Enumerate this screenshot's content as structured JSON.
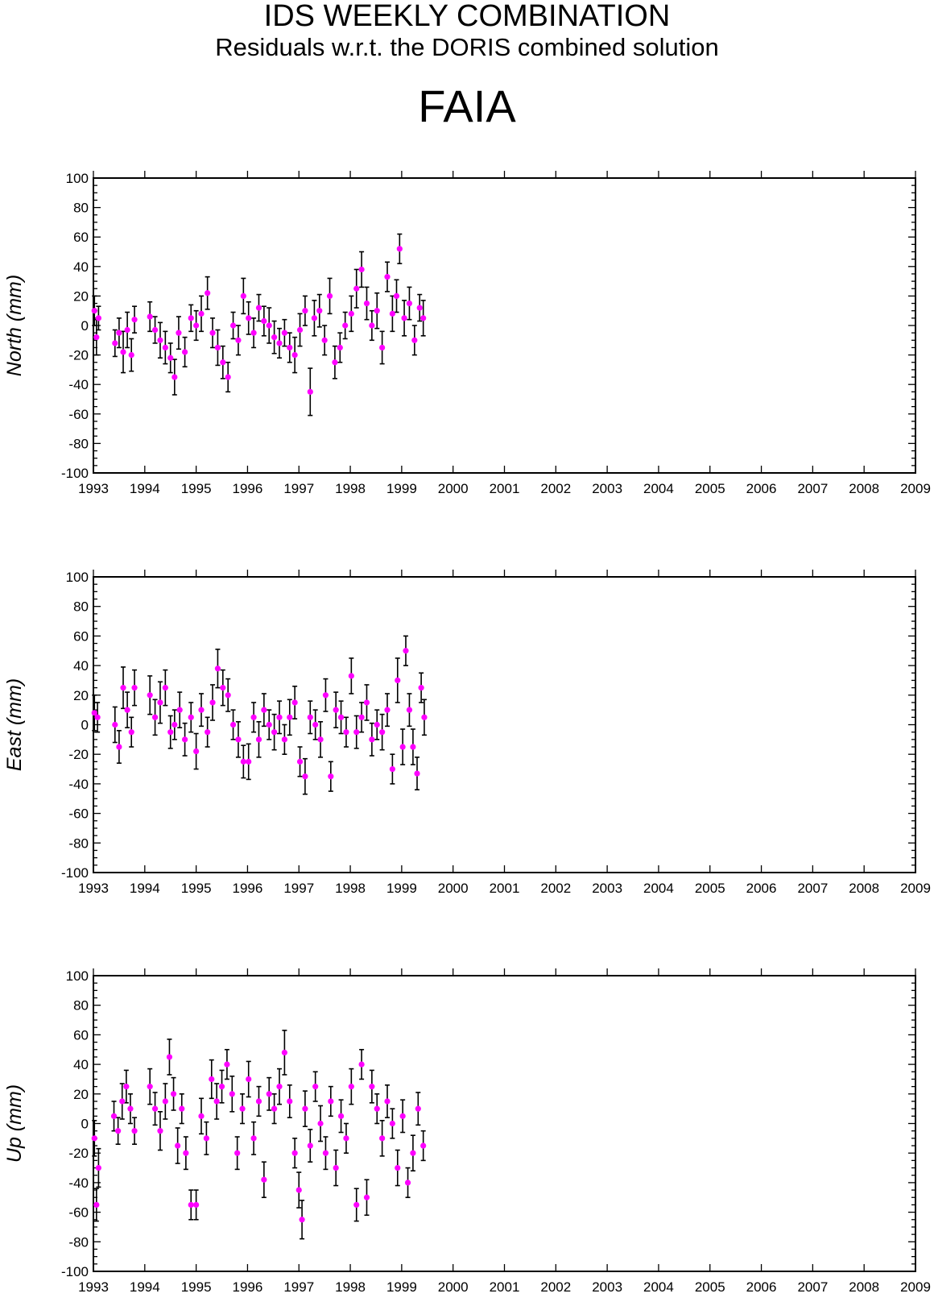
{
  "header": {
    "title": "IDS WEEKLY COMBINATION",
    "subtitle": "Residuals w.r.t. the DORIS combined solution",
    "station": "FAIA"
  },
  "colors": {
    "marker": "#ff00ff",
    "errorbar": "#000000",
    "axis": "#000000"
  },
  "chart_data": [
    {
      "type": "scatter",
      "ylabel": "North (mm)",
      "xlim": [
        1993,
        2009
      ],
      "ylim": [
        -100,
        100
      ],
      "xticks": [
        "1993",
        "1994",
        "1995",
        "1996",
        "1997",
        "1998",
        "1999",
        "2000",
        "2001",
        "2002",
        "2003",
        "2004",
        "2005",
        "2006",
        "2007",
        "2008",
        "2009"
      ],
      "yticks": [
        "100",
        "80",
        "60",
        "40",
        "20",
        "0",
        "-20",
        "-40",
        "-60",
        "-80",
        "-100"
      ],
      "x": [
        1993.02,
        1993.06,
        1993.1,
        1993.42,
        1993.5,
        1993.58,
        1993.66,
        1993.74,
        1993.8,
        1994.1,
        1994.2,
        1994.3,
        1994.4,
        1994.5,
        1994.58,
        1994.66,
        1994.78,
        1994.9,
        1995.0,
        1995.1,
        1995.22,
        1995.32,
        1995.42,
        1995.52,
        1995.62,
        1995.72,
        1995.82,
        1995.92,
        1996.02,
        1996.12,
        1996.22,
        1996.32,
        1996.42,
        1996.52,
        1996.62,
        1996.72,
        1996.82,
        1996.92,
        1997.02,
        1997.12,
        1997.22,
        1997.3,
        1997.4,
        1997.5,
        1997.6,
        1997.7,
        1997.8,
        1997.9,
        1998.02,
        1998.12,
        1998.22,
        1998.32,
        1998.42,
        1998.52,
        1998.62,
        1998.72,
        1998.82,
        1998.9,
        1998.96,
        1999.05,
        1999.15,
        1999.25,
        1999.35,
        1999.42
      ],
      "y": [
        10,
        -8,
        5,
        -12,
        -5,
        -18,
        -3,
        -20,
        4,
        6,
        -3,
        -10,
        -15,
        -22,
        -35,
        -5,
        -18,
        5,
        0,
        8,
        22,
        -5,
        -15,
        -25,
        -35,
        0,
        -10,
        20,
        5,
        -5,
        12,
        3,
        0,
        -8,
        -12,
        -5,
        -15,
        -20,
        -3,
        10,
        -45,
        5,
        10,
        -10,
        20,
        -25,
        -15,
        0,
        8,
        25,
        38,
        15,
        0,
        10,
        -15,
        33,
        8,
        20,
        52,
        5,
        15,
        -10,
        12,
        5
      ],
      "err": [
        10,
        12,
        8,
        9,
        10,
        14,
        12,
        11,
        9,
        10,
        9,
        12,
        11,
        10,
        12,
        11,
        10,
        9,
        10,
        12,
        11,
        10,
        12,
        11,
        10,
        9,
        10,
        12,
        11,
        10,
        9,
        10,
        12,
        11,
        10,
        9,
        10,
        12,
        11,
        10,
        16,
        12,
        11,
        10,
        12,
        11,
        10,
        9,
        12,
        13,
        12,
        11,
        10,
        12,
        11,
        10,
        12,
        11,
        10,
        12,
        11,
        10,
        9,
        12
      ]
    },
    {
      "type": "scatter",
      "ylabel": "East (mm)",
      "xlim": [
        1993,
        2009
      ],
      "ylim": [
        -100,
        100
      ],
      "xticks": [
        "1993",
        "1994",
        "1995",
        "1996",
        "1997",
        "1998",
        "1999",
        "2000",
        "2001",
        "2002",
        "2003",
        "2004",
        "2005",
        "2006",
        "2007",
        "2008",
        "2009"
      ],
      "yticks": [
        "100",
        "80",
        "60",
        "40",
        "20",
        "0",
        "-20",
        "-40",
        "-60",
        "-80",
        "-100"
      ],
      "x": [
        1993.02,
        1993.08,
        1993.42,
        1993.5,
        1993.58,
        1993.66,
        1993.74,
        1993.8,
        1994.1,
        1994.2,
        1994.3,
        1994.4,
        1994.5,
        1994.58,
        1994.68,
        1994.78,
        1994.9,
        1995.0,
        1995.1,
        1995.22,
        1995.32,
        1995.42,
        1995.52,
        1995.62,
        1995.72,
        1995.82,
        1995.92,
        1996.02,
        1996.12,
        1996.22,
        1996.32,
        1996.42,
        1996.52,
        1996.62,
        1996.72,
        1996.82,
        1996.92,
        1997.02,
        1997.12,
        1997.22,
        1997.32,
        1997.42,
        1997.52,
        1997.62,
        1997.72,
        1997.82,
        1997.92,
        1998.02,
        1998.12,
        1998.22,
        1998.32,
        1998.42,
        1998.52,
        1998.62,
        1998.72,
        1998.82,
        1998.92,
        1999.02,
        1999.08,
        1999.15,
        1999.22,
        1999.3,
        1999.38,
        1999.44
      ],
      "y": [
        8,
        5,
        0,
        -15,
        25,
        10,
        -5,
        25,
        20,
        5,
        15,
        25,
        -5,
        0,
        10,
        -10,
        5,
        -18,
        10,
        -5,
        15,
        38,
        25,
        20,
        0,
        -10,
        -25,
        -25,
        5,
        -10,
        10,
        0,
        -5,
        5,
        -10,
        5,
        15,
        -25,
        -35,
        5,
        0,
        -10,
        20,
        -35,
        10,
        5,
        -5,
        33,
        -5,
        5,
        15,
        -10,
        0,
        -5,
        10,
        -30,
        30,
        -15,
        50,
        10,
        -15,
        -33,
        25,
        5
      ],
      "err": [
        12,
        10,
        12,
        11,
        14,
        12,
        10,
        12,
        13,
        12,
        14,
        12,
        11,
        10,
        12,
        11,
        10,
        12,
        11,
        10,
        12,
        13,
        12,
        11,
        10,
        12,
        11,
        12,
        10,
        12,
        11,
        10,
        12,
        11,
        10,
        12,
        11,
        10,
        12,
        11,
        10,
        12,
        11,
        10,
        12,
        11,
        10,
        12,
        11,
        10,
        12,
        11,
        10,
        12,
        11,
        10,
        15,
        12,
        10,
        11,
        12,
        11,
        10,
        12
      ]
    },
    {
      "type": "scatter",
      "ylabel": "Up (mm)",
      "xlim": [
        1993,
        2009
      ],
      "ylim": [
        -100,
        100
      ],
      "xticks": [
        "1993",
        "1994",
        "1995",
        "1996",
        "1997",
        "1998",
        "1999",
        "2000",
        "2001",
        "2002",
        "2003",
        "2004",
        "2005",
        "2006",
        "2007",
        "2008",
        "2009"
      ],
      "yticks": [
        "100",
        "80",
        "60",
        "40",
        "20",
        "0",
        "-20",
        "-40",
        "-60",
        "-80",
        "-100"
      ],
      "x": [
        1993.02,
        1993.06,
        1993.1,
        1993.4,
        1993.48,
        1993.56,
        1993.64,
        1993.72,
        1993.8,
        1994.1,
        1994.2,
        1994.3,
        1994.4,
        1994.48,
        1994.56,
        1994.64,
        1994.72,
        1994.8,
        1994.9,
        1995.0,
        1995.1,
        1995.2,
        1995.3,
        1995.4,
        1995.5,
        1995.6,
        1995.7,
        1995.8,
        1995.9,
        1996.02,
        1996.12,
        1996.22,
        1996.32,
        1996.42,
        1996.52,
        1996.62,
        1996.72,
        1996.82,
        1996.92,
        1997.0,
        1997.06,
        1997.12,
        1997.22,
        1997.32,
        1997.42,
        1997.52,
        1997.62,
        1997.72,
        1997.82,
        1997.92,
        1998.02,
        1998.12,
        1998.22,
        1998.32,
        1998.42,
        1998.52,
        1998.62,
        1998.72,
        1998.82,
        1998.92,
        1999.02,
        1999.12,
        1999.22,
        1999.32,
        1999.42
      ],
      "y": [
        -10,
        -55,
        -30,
        5,
        -5,
        15,
        25,
        10,
        -5,
        25,
        10,
        -5,
        15,
        45,
        20,
        -15,
        10,
        -20,
        -55,
        -55,
        5,
        -10,
        30,
        15,
        25,
        40,
        20,
        -20,
        10,
        30,
        -10,
        15,
        -38,
        20,
        10,
        25,
        48,
        15,
        -20,
        -45,
        -65,
        10,
        -15,
        25,
        0,
        -20,
        15,
        -30,
        5,
        -10,
        25,
        -55,
        40,
        -50,
        25,
        10,
        -10,
        15,
        0,
        -30,
        5,
        -40,
        -20,
        10,
        -15
      ],
      "err": [
        12,
        11,
        13,
        10,
        9,
        12,
        11,
        10,
        9,
        12,
        11,
        13,
        12,
        12,
        11,
        12,
        10,
        11,
        10,
        10,
        12,
        11,
        13,
        12,
        11,
        10,
        12,
        11,
        10,
        12,
        11,
        10,
        12,
        11,
        10,
        12,
        15,
        11,
        10,
        12,
        13,
        12,
        11,
        10,
        12,
        11,
        10,
        12,
        11,
        10,
        12,
        11,
        10,
        12,
        11,
        10,
        12,
        11,
        10,
        12,
        11,
        10,
        12,
        11,
        10
      ]
    }
  ]
}
